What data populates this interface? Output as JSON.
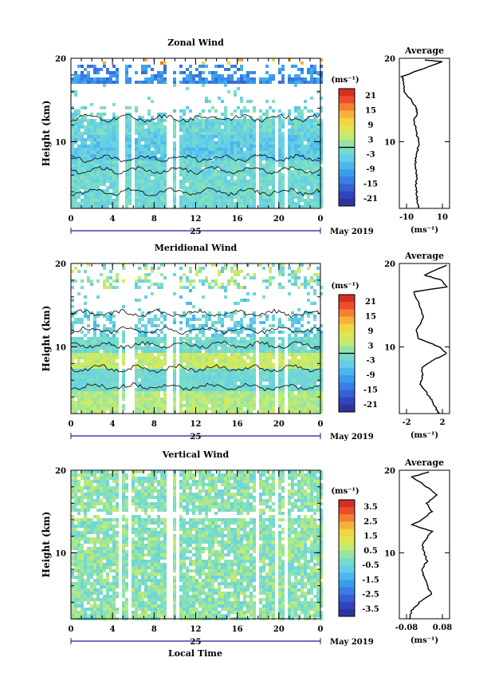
{
  "panels": [
    {
      "id": "zonal",
      "title": "Zonal Wind",
      "ylabel": "Height (km)",
      "yticks": [
        "20",
        "10"
      ],
      "xticks": [
        "0",
        "4",
        "8",
        "12",
        "16",
        "20",
        "0"
      ],
      "date_day": "25",
      "date_month": "May 2019",
      "colorbar_unit": "(ms⁻¹)",
      "colorbar_ticks": [
        "21",
        "15",
        "9",
        "3",
        "-3",
        "-9",
        "-15",
        "-21"
      ],
      "avg_title": "Average",
      "avg_xticks": [
        "-10",
        "10"
      ],
      "avg_unit": "(ms⁻¹)"
    },
    {
      "id": "meridional",
      "title": "Meridional Wind",
      "ylabel": "Height (km)",
      "yticks": [
        "20",
        "10"
      ],
      "xticks": [
        "0",
        "4",
        "8",
        "12",
        "16",
        "20",
        "0"
      ],
      "date_day": "25",
      "date_month": "May 2019",
      "colorbar_unit": "(ms⁻¹)",
      "colorbar_ticks": [
        "21",
        "15",
        "9",
        "3",
        "-3",
        "-9",
        "-15",
        "-21"
      ],
      "avg_title": "Average",
      "avg_xticks": [
        "-2",
        "2"
      ],
      "avg_unit": "(ms⁻¹)"
    },
    {
      "id": "vertical",
      "title": "Vertical Wind",
      "ylabel": "Height (km)",
      "yticks": [
        "20",
        "10"
      ],
      "xticks": [
        "0",
        "4",
        "8",
        "12",
        "16",
        "20",
        "0"
      ],
      "date_day": "25",
      "date_month": "May 2019",
      "colorbar_unit": "(ms⁻¹)",
      "colorbar_ticks": [
        "3.5",
        "2.5",
        "1.5",
        "0.5",
        "-0.5",
        "-1.5",
        "-2.5",
        "-3.5"
      ],
      "avg_title": "Average",
      "avg_xticks": [
        "-0.08",
        "0.08"
      ],
      "avg_unit": "(ms⁻¹)"
    }
  ],
  "xlabel": "Local Time",
  "colors": {
    "colormap": [
      "#2a2e8a",
      "#3344c4",
      "#3a75e0",
      "#3aa6ee",
      "#62cdea",
      "#7fe0c0",
      "#c8ec6a",
      "#f0e040",
      "#f8a638",
      "#f0502c",
      "#c81e1e"
    ],
    "gap_cmap_marker": "#000000"
  },
  "chart_data": [
    {
      "type": "heatmap",
      "title": "Zonal Wind",
      "ylabel": "Height (km)",
      "xlim": [
        0,
        24
      ],
      "ylim": [
        2,
        20
      ],
      "clim": [
        -24,
        24
      ],
      "data_gaps_hours": [
        [
          4.6,
          5.1
        ],
        [
          5.7,
          6.0
        ],
        [
          9.2,
          9.6
        ],
        [
          10.1,
          10.4
        ],
        [
          17.6,
          18.0
        ],
        [
          19.4,
          19.7
        ],
        [
          20.3,
          20.6
        ]
      ],
      "profile": [
        {
          "h": 19.8,
          "v": 0.0
        },
        {
          "h": 19.6,
          "v": 9.6
        },
        {
          "h": 17.8,
          "v": -12.6
        },
        {
          "h": 17.2,
          "v": -11.6
        },
        {
          "h": 16.0,
          "v": -11.2
        },
        {
          "h": 15.0,
          "v": -7.5
        },
        {
          "h": 14.0,
          "v": -4.5
        },
        {
          "h": 13.4,
          "v": -3.9
        },
        {
          "h": 12.6,
          "v": -5.8
        },
        {
          "h": 11.0,
          "v": -4.4
        },
        {
          "h": 10.0,
          "v": -2.9
        },
        {
          "h": 9.0,
          "v": -3.8
        },
        {
          "h": 8.0,
          "v": -4.9
        },
        {
          "h": 7.0,
          "v": -5.0
        },
        {
          "h": 6.0,
          "v": -4.3
        },
        {
          "h": 5.0,
          "v": -4.7
        },
        {
          "h": 4.0,
          "v": -4.3
        },
        {
          "h": 3.0,
          "v": -4.2
        },
        {
          "h": 2.0,
          "v": -3.0
        }
      ],
      "profile_xlim": [
        -14,
        14
      ]
    },
    {
      "type": "heatmap",
      "title": "Meridional Wind",
      "ylabel": "Height (km)",
      "xlim": [
        0,
        24
      ],
      "ylim": [
        2,
        20
      ],
      "clim": [
        -24,
        24
      ],
      "data_gaps_hours": [
        [
          4.4,
          4.7
        ],
        [
          5.2,
          5.9
        ],
        [
          9.0,
          9.6
        ],
        [
          10.1,
          10.4
        ],
        [
          17.6,
          18.0
        ],
        [
          19.4,
          19.7
        ],
        [
          20.3,
          20.6
        ]
      ],
      "profile": [
        {
          "h": 19.8,
          "v": 2.2
        },
        {
          "h": 18.6,
          "v": 0.0
        },
        {
          "h": 18.0,
          "v": 1.7
        },
        {
          "h": 17.2,
          "v": 2.2
        },
        {
          "h": 16.6,
          "v": -1.1
        },
        {
          "h": 15.0,
          "v": -0.5
        },
        {
          "h": 13.5,
          "v": -0.1
        },
        {
          "h": 12.0,
          "v": -0.8
        },
        {
          "h": 11.0,
          "v": -0.6
        },
        {
          "h": 10.0,
          "v": 1.5
        },
        {
          "h": 9.2,
          "v": 2.2
        },
        {
          "h": 8.5,
          "v": 1.0
        },
        {
          "h": 7.5,
          "v": -0.3
        },
        {
          "h": 6.5,
          "v": -0.2
        },
        {
          "h": 5.5,
          "v": -0.4
        },
        {
          "h": 4.5,
          "v": 0.2
        },
        {
          "h": 3.5,
          "v": 0.8
        },
        {
          "h": 2.5,
          "v": 1.2
        },
        {
          "h": 2.0,
          "v": 1.5
        }
      ],
      "profile_xlim": [
        -2.5,
        2.5
      ]
    },
    {
      "type": "heatmap",
      "title": "Vertical Wind",
      "ylabel": "Height (km)",
      "xlim": [
        0,
        24
      ],
      "ylim": [
        2,
        20
      ],
      "clim": [
        -4,
        4
      ],
      "data_gaps_hours": [
        [
          4.4,
          4.8
        ],
        [
          5.4,
          5.8
        ],
        [
          9.2,
          9.6
        ],
        [
          10.0,
          10.4
        ],
        [
          17.6,
          18.0
        ],
        [
          19.4,
          19.7
        ],
        [
          20.3,
          20.6
        ]
      ],
      "profile": [
        {
          "h": 19.8,
          "v": 0.02
        },
        {
          "h": 19.2,
          "v": -0.05
        },
        {
          "h": 18.2,
          "v": 0.0
        },
        {
          "h": 17.0,
          "v": 0.05
        },
        {
          "h": 16.0,
          "v": 0.01
        },
        {
          "h": 15.0,
          "v": 0.03
        },
        {
          "h": 14.0,
          "v": -0.01
        },
        {
          "h": 13.4,
          "v": -0.05
        },
        {
          "h": 12.6,
          "v": 0.03
        },
        {
          "h": 11.0,
          "v": -0.01
        },
        {
          "h": 10.0,
          "v": 0.0
        },
        {
          "h": 9.0,
          "v": 0.01
        },
        {
          "h": 8.0,
          "v": -0.01
        },
        {
          "h": 7.0,
          "v": 0.0
        },
        {
          "h": 6.0,
          "v": 0.01
        },
        {
          "h": 5.0,
          "v": 0.03
        },
        {
          "h": 4.0,
          "v": -0.02
        },
        {
          "h": 3.0,
          "v": -0.05
        },
        {
          "h": 2.0,
          "v": -0.06
        }
      ],
      "profile_xlim": [
        -0.1,
        0.1
      ]
    }
  ]
}
